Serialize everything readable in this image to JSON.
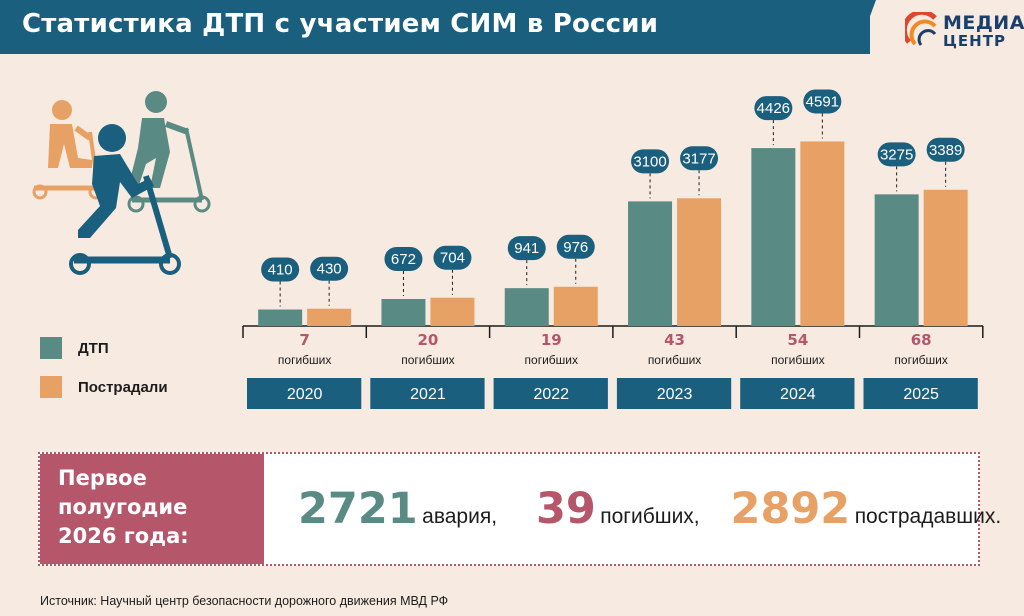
{
  "header": {
    "title": "Статистика ДТП с участием СИМ в России"
  },
  "logo": {
    "line1": "МЕДИА",
    "line2": "ЦЕНТР"
  },
  "legend": [
    {
      "label": "ДТП",
      "color": "#5a8a84"
    },
    {
      "label": "Пострадали",
      "color": "#e8a165"
    }
  ],
  "chart_data": {
    "type": "bar",
    "categories": [
      "2020",
      "2021",
      "2022",
      "2023",
      "2024",
      "2025"
    ],
    "series": [
      {
        "name": "ДТП",
        "values": [
          410,
          672,
          941,
          3100,
          4426,
          3275
        ],
        "color": "#5a8a84"
      },
      {
        "name": "Пострадали",
        "values": [
          430,
          704,
          976,
          3177,
          4591,
          3389
        ],
        "color": "#e8a165"
      }
    ],
    "deaths": [
      7,
      20,
      19,
      43,
      54,
      68
    ],
    "deaths_label": "погибших",
    "ylim": [
      0,
      5000
    ]
  },
  "summary": {
    "title": "Первое\nполугодие\n2026 года:",
    "accidents_value": "2721",
    "accidents_label": "авария,",
    "deaths_value": "39",
    "deaths_label": "погибших,",
    "injured_value": "2892",
    "injured_label": "пострадавших."
  },
  "colors": {
    "header": "#1b5f7e",
    "teal": "#5a8a84",
    "orange": "#e8a165",
    "crimson": "#b5566b",
    "bg": "#f7ebe1"
  },
  "source": "Источник: Научный центр безопасности дорожного движения МВД РФ"
}
